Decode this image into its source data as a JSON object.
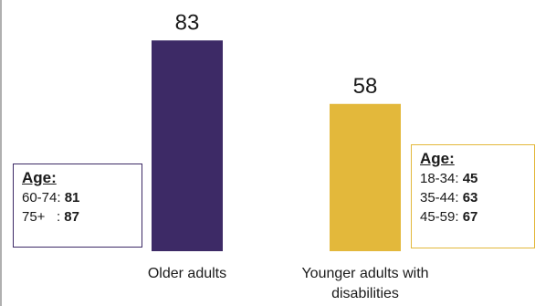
{
  "chart_data": {
    "type": "bar",
    "categories": [
      "Older adults",
      "Younger adults with disabilities"
    ],
    "category_lines": [
      [
        "Older adults"
      ],
      [
        "Younger adults with",
        "disabilities"
      ]
    ],
    "values": [
      83,
      58
    ],
    "colors": [
      "#3d2a66",
      "#e3b83b"
    ],
    "ylim": [
      0,
      100
    ],
    "grid": false,
    "legend": "none"
  },
  "age_boxes": {
    "older": {
      "heading": "Age:",
      "rows": [
        {
          "label": "60-74: ",
          "value": "81"
        },
        {
          "label": "75+   : ",
          "value": "87"
        }
      ]
    },
    "younger": {
      "heading": "Age:",
      "rows": [
        {
          "label": "18-34: ",
          "value": "45"
        },
        {
          "label": "35-44: ",
          "value": "63"
        },
        {
          "label": "45-59: ",
          "value": "67"
        }
      ]
    }
  }
}
